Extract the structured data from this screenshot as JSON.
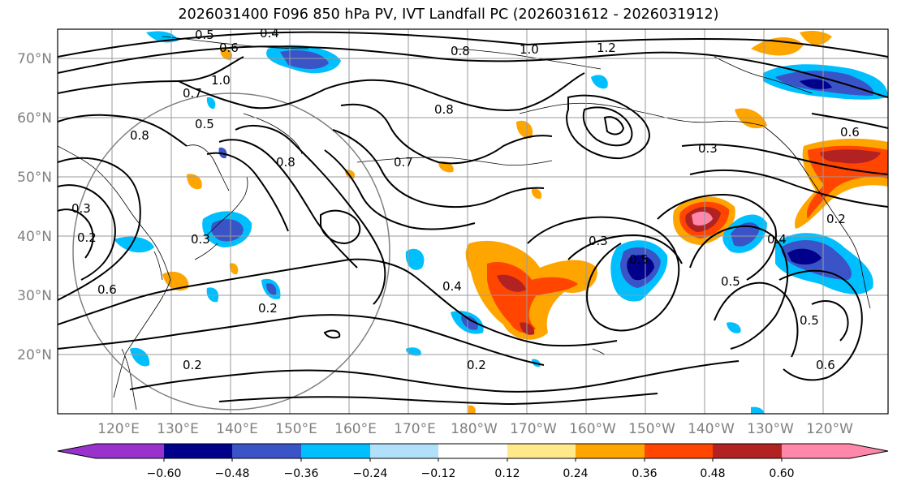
{
  "title": "2026031400 F096 850 hPa PV, IVT Landfall PC (2026031612 - 2026031912)",
  "latitude_labels": [
    "70°N",
    "60°N",
    "50°N",
    "40°N",
    "30°N",
    "20°N"
  ],
  "longitude_labels": [
    "120°E",
    "130°E",
    "140°E",
    "150°E",
    "160°E",
    "170°E",
    "180°W",
    "170°W",
    "160°W",
    "150°W",
    "140°W",
    "130°W",
    "120°W"
  ],
  "colorbar": {
    "ticks": [
      "−0.60",
      "−0.48",
      "−0.36",
      "−0.24",
      "−0.12",
      "0.12",
      "0.24",
      "0.36",
      "0.48",
      "0.60"
    ],
    "colors": [
      "#9932cc",
      "#00008b",
      "#3a54c8",
      "#00bfff",
      "#b0e0fa",
      "#ffffff",
      "#ffe98a",
      "#ffa500",
      "#ff4500",
      "#b22222",
      "#ff88aa"
    ]
  },
  "contour_labels": [
    "0.4",
    "0.5",
    "0.8",
    "1.0",
    "1.2",
    "0.7",
    "0.8",
    "1.0",
    "0.8",
    "0.5",
    "0.7",
    "0.8",
    "0.6",
    "0.3",
    "0.3",
    "0.2",
    "0.6",
    "0.2",
    "0.2",
    "0.4",
    "0.3",
    "0.5",
    "0.2",
    "0.5",
    "0.5",
    "0.6",
    "0.3",
    "0.4",
    "0.2",
    "0.6"
  ]
}
